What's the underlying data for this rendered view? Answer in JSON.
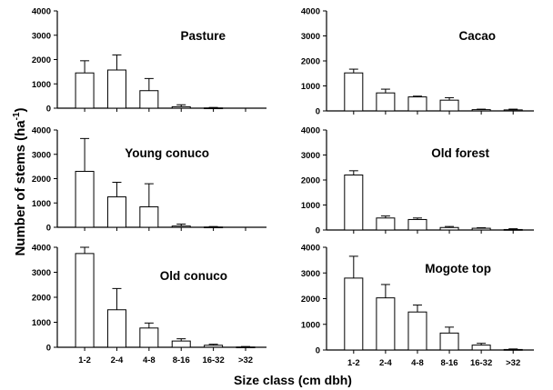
{
  "ylabel_text": "Number of stems (ha",
  "ylabel_sup": "-1",
  "ylabel_close": ")",
  "xlabel": "Size class (cm dbh)",
  "chart_data": [
    {
      "type": "bar",
      "title": "Pasture",
      "categories": [
        "1-2",
        "2-4",
        "4-8",
        "8-16",
        "16-32",
        ">32"
      ],
      "values": [
        1450,
        1570,
        720,
        60,
        10,
        0
      ],
      "errors": [
        500,
        620,
        500,
        80,
        20,
        0
      ],
      "ylim": [
        0,
        4000
      ],
      "yticks": [
        "0",
        "1000",
        "2000",
        "3000",
        "4000"
      ],
      "show_xticks": false
    },
    {
      "type": "bar",
      "title": "Cacao",
      "categories": [
        "1-2",
        "2-4",
        "4-8",
        "8-16",
        "16-32",
        ">32"
      ],
      "values": [
        1520,
        720,
        560,
        430,
        50,
        40
      ],
      "errors": [
        150,
        150,
        30,
        100,
        20,
        30
      ],
      "ylim": [
        0,
        4000
      ],
      "yticks": [
        "0",
        "1000",
        "2000",
        "3000",
        "4000"
      ],
      "show_xticks": false
    },
    {
      "type": "bar",
      "title": "Young conuco",
      "categories": [
        "1-2",
        "2-4",
        "4-8",
        "8-16",
        "16-32",
        ">32"
      ],
      "values": [
        2300,
        1250,
        840,
        50,
        10,
        0
      ],
      "errors": [
        1350,
        600,
        950,
        80,
        20,
        0
      ],
      "ylim": [
        0,
        4000
      ],
      "yticks": [
        "0",
        "1000",
        "2000",
        "3000",
        "4000"
      ],
      "show_xticks": false
    },
    {
      "type": "bar",
      "title": "Old forest",
      "categories": [
        "1-2",
        "2-4",
        "4-8",
        "8-16",
        "16-32",
        ">32"
      ],
      "values": [
        2200,
        480,
        420,
        100,
        70,
        20
      ],
      "errors": [
        170,
        80,
        60,
        40,
        20,
        30
      ],
      "ylim": [
        0,
        4000
      ],
      "yticks": [
        "0",
        "1000",
        "2000",
        "3000",
        "4000"
      ],
      "show_xticks": false
    },
    {
      "type": "bar",
      "title": "Old conuco",
      "categories": [
        "1-2",
        "2-4",
        "4-8",
        "8-16",
        "16-32",
        ">32"
      ],
      "values": [
        3750,
        1500,
        770,
        250,
        80,
        10
      ],
      "errors": [
        250,
        850,
        200,
        90,
        40,
        20
      ],
      "ylim": [
        0,
        4000
      ],
      "yticks": [
        "0",
        "1000",
        "2000",
        "3000",
        "4000"
      ],
      "show_xticks": true
    },
    {
      "type": "bar",
      "title": "Mogote top",
      "categories": [
        "1-2",
        "2-4",
        "4-8",
        "8-16",
        "16-32",
        ">32"
      ],
      "values": [
        2800,
        2030,
        1480,
        660,
        190,
        20
      ],
      "errors": [
        850,
        520,
        270,
        230,
        70,
        20
      ],
      "ylim": [
        0,
        4000
      ],
      "yticks": [
        "0",
        "1000",
        "2000",
        "3000",
        "4000"
      ],
      "show_xticks": true
    }
  ]
}
